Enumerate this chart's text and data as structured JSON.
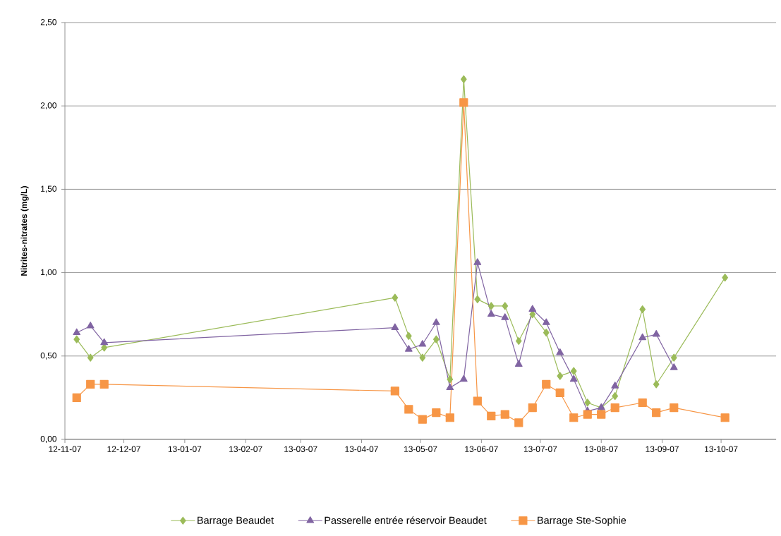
{
  "chart_data": {
    "type": "line",
    "ylabel": "Nitrites-nitrates (mg/L)",
    "x": [
      "2012-11-13",
      "2012-11-20",
      "2012-11-27",
      "2013-04-24",
      "2013-05-01",
      "2013-05-08",
      "2013-05-15",
      "2013-05-22",
      "2013-05-29",
      "2013-06-05",
      "2013-06-12",
      "2013-06-19",
      "2013-06-26",
      "2013-07-03",
      "2013-07-10",
      "2013-07-17",
      "2013-07-24",
      "2013-07-31",
      "2013-08-07",
      "2013-08-14",
      "2013-08-28",
      "2013-09-04",
      "2013-09-13",
      "2013-10-09"
    ],
    "xlim": [
      "2012-11-07",
      "2013-11-04"
    ],
    "xticks": [
      {
        "value": "2012-11-07",
        "label": "12-11-07"
      },
      {
        "value": "2012-12-07",
        "label": "12-12-07"
      },
      {
        "value": "2013-01-07",
        "label": "13-01-07"
      },
      {
        "value": "2013-02-07",
        "label": "13-02-07"
      },
      {
        "value": "2013-03-07",
        "label": "13-03-07"
      },
      {
        "value": "2013-04-07",
        "label": "13-04-07"
      },
      {
        "value": "2013-05-07",
        "label": "13-05-07"
      },
      {
        "value": "2013-06-07",
        "label": "13-06-07"
      },
      {
        "value": "2013-07-07",
        "label": "13-07-07"
      },
      {
        "value": "2013-08-07",
        "label": "13-08-07"
      },
      {
        "value": "2013-09-07",
        "label": "13-09-07"
      },
      {
        "value": "2013-10-07",
        "label": "13-10-07"
      }
    ],
    "ylim": [
      0,
      2.5
    ],
    "yticks": [
      {
        "value": 0,
        "label": "0,00"
      },
      {
        "value": 0.5,
        "label": "0,50"
      },
      {
        "value": 1,
        "label": "1,00"
      },
      {
        "value": 1.5,
        "label": "1,50"
      },
      {
        "value": 2,
        "label": "2,00"
      },
      {
        "value": 2.5,
        "label": "2,50"
      }
    ],
    "grid": "y",
    "legend": "bottom",
    "line_style": "solid",
    "series": [
      {
        "name": "Barrage Beaudet",
        "color": "#9bbb59",
        "marker": "diamond",
        "values": [
          0.6,
          0.49,
          0.55,
          0.85,
          0.62,
          0.49,
          0.6,
          0.36,
          2.16,
          0.84,
          0.8,
          0.8,
          0.59,
          0.75,
          0.64,
          0.38,
          0.41,
          0.22,
          0.19,
          0.26,
          0.78,
          0.33,
          0.49,
          0.97
        ]
      },
      {
        "name": "Passerelle entrée réservoir Beaudet",
        "color": "#8064a2",
        "marker": "triangle",
        "values": [
          0.64,
          0.68,
          0.58,
          0.67,
          0.54,
          0.57,
          0.7,
          0.31,
          0.36,
          1.06,
          0.75,
          0.73,
          0.45,
          0.78,
          0.7,
          0.52,
          0.36,
          0.17,
          0.19,
          0.32,
          0.61,
          0.63,
          0.43,
          null
        ]
      },
      {
        "name": "Barrage Ste-Sophie",
        "color": "#f79646",
        "marker": "square",
        "values": [
          0.25,
          0.33,
          0.33,
          0.29,
          0.18,
          0.12,
          0.16,
          0.13,
          2.02,
          0.23,
          0.14,
          0.15,
          0.1,
          0.19,
          0.33,
          0.28,
          0.13,
          0.15,
          0.15,
          0.19,
          0.22,
          0.16,
          0.19,
          0.13
        ]
      }
    ]
  }
}
